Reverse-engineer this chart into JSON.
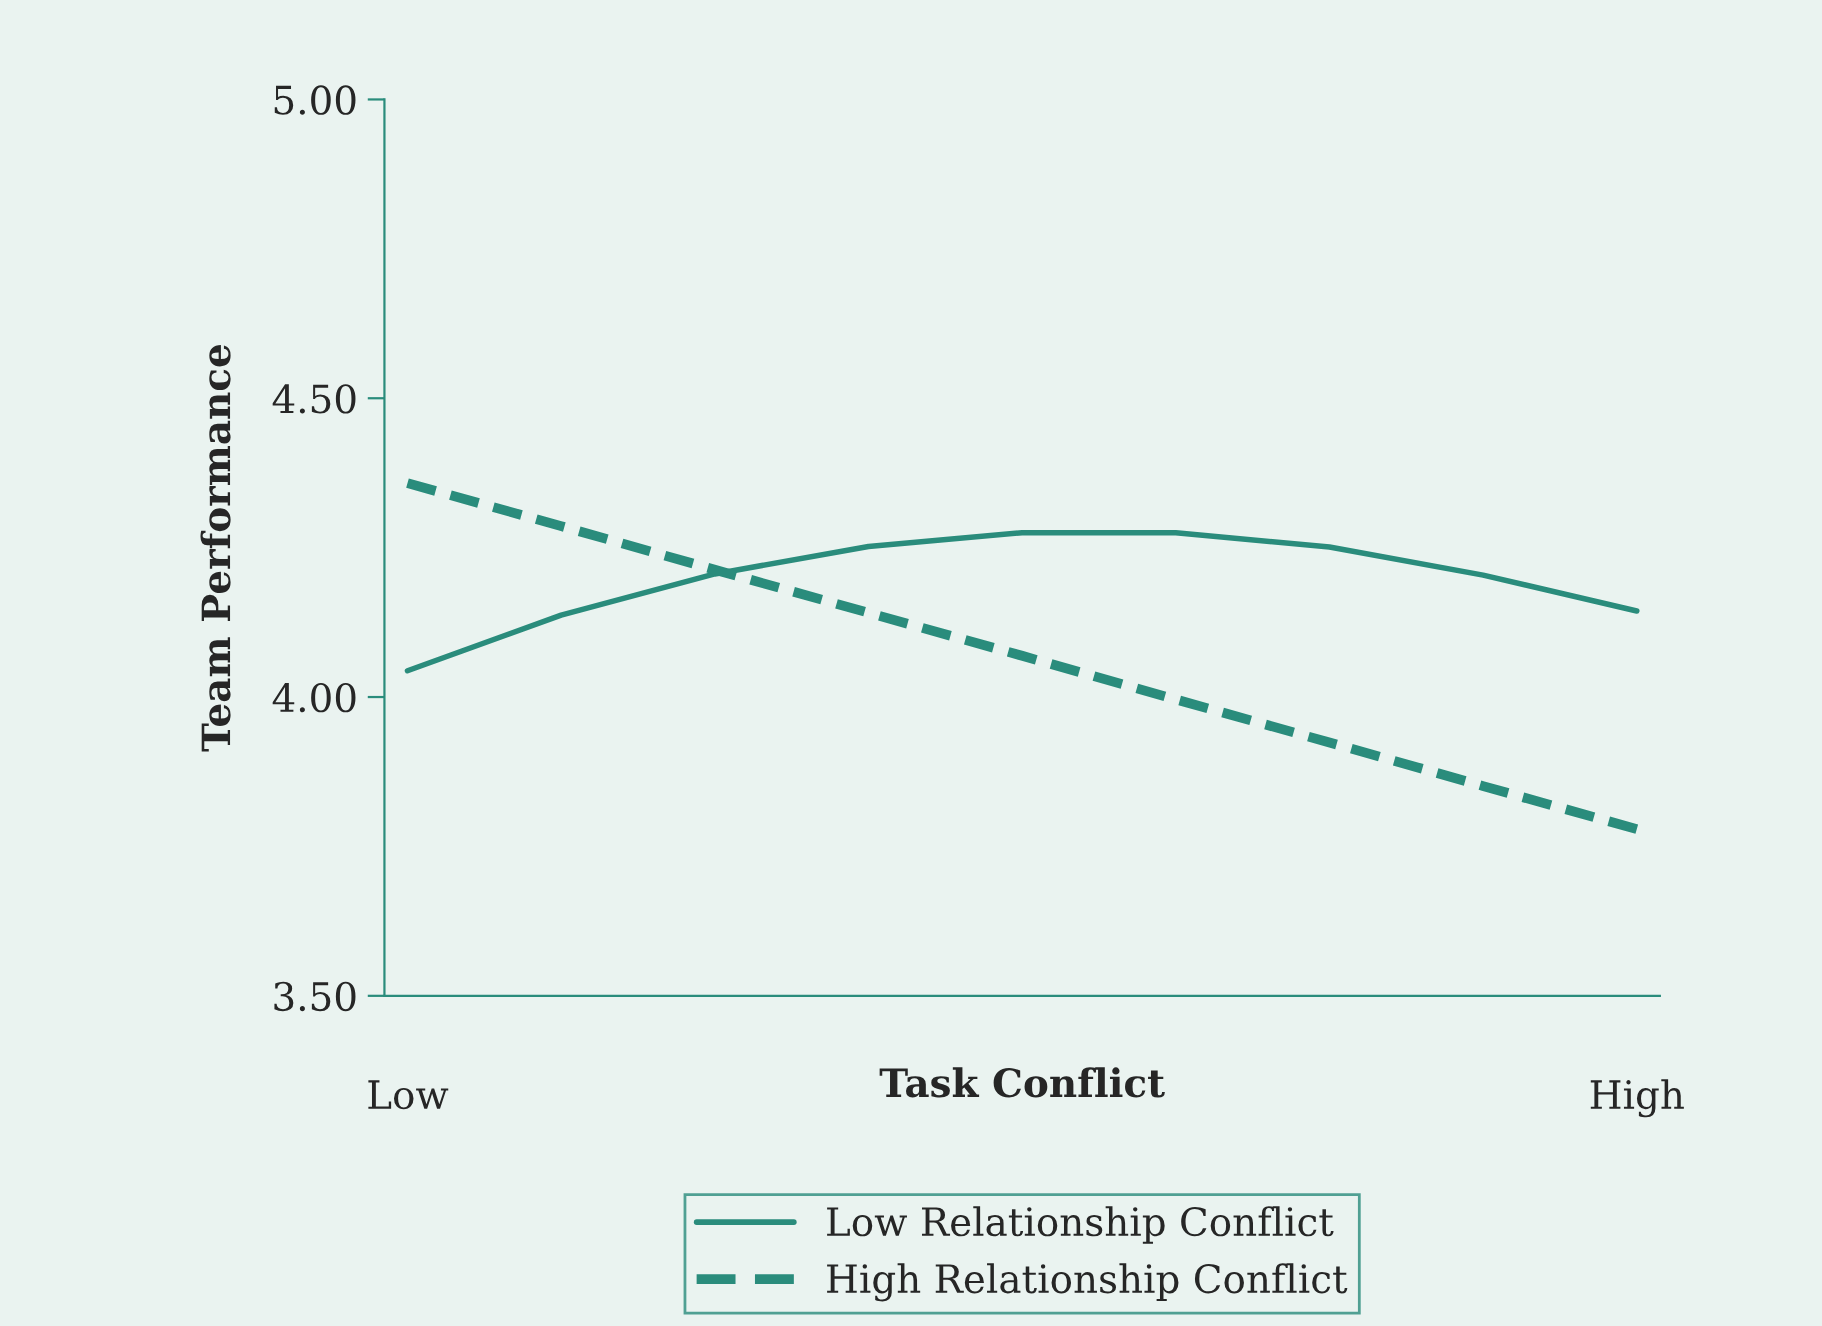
{
  "chart_data": {
    "type": "line",
    "xlabel": "Task Conflict",
    "ylabel": "Team Performance",
    "categories": [
      "Low",
      null,
      null,
      null,
      null,
      null,
      null,
      null,
      "High"
    ],
    "ylim": [
      3.5,
      5.0
    ],
    "yticks": [
      {
        "value": 3.5,
        "label": "3.50"
      },
      {
        "value": 4.0,
        "label": "4.00"
      },
      {
        "value": 4.5,
        "label": "4.50"
      },
      {
        "value": 5.0,
        "label": "5.00"
      }
    ],
    "grid": false,
    "legend": "bottom",
    "series": [
      {
        "name": "Low Relationship Conflict",
        "color": "#2a8c7c",
        "line_style": "solid",
        "values": [
          4.044,
          4.137,
          4.206,
          4.252,
          4.275,
          4.275,
          4.251,
          4.204,
          4.144
        ]
      },
      {
        "name": "High Relationship Conflict",
        "color": "#2a8c7c",
        "line_style": "dashed",
        "values": [
          4.358,
          4.286,
          4.213,
          4.141,
          4.069,
          3.996,
          3.924,
          3.851,
          3.779
        ]
      }
    ]
  }
}
